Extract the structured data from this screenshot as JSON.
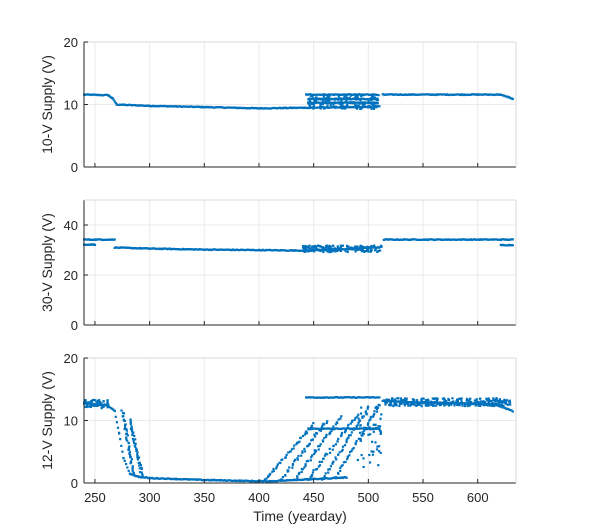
{
  "chart_data": [
    {
      "type": "scatter",
      "title": "",
      "xlabel": "",
      "ylabel": "10-V Supply (V)",
      "xlim": [
        240,
        635
      ],
      "ylim": [
        0,
        20
      ],
      "xticks": [
        250,
        300,
        350,
        400,
        450,
        500,
        550,
        600
      ],
      "yticks": [
        0,
        10,
        20
      ],
      "show_xticklabels": false,
      "grid": true,
      "color": "#0072BD",
      "segments": [
        {
          "x": [
            240,
            262,
            266,
            270,
            300,
            350,
            400,
            440,
            500,
            510
          ],
          "y": [
            11.6,
            11.5,
            11.0,
            10.0,
            9.8,
            9.6,
            9.4,
            9.5,
            9.6,
            9.7
          ]
        },
        {
          "x": [
            443,
            508
          ],
          "y": [
            11.6,
            11.6
          ]
        },
        {
          "x": [
            445,
            508
          ],
          "y": [
            10.9,
            10.9
          ]
        },
        {
          "x": [
            445,
            508
          ],
          "y": [
            10.3,
            10.3
          ]
        },
        {
          "x": [
            513,
            620,
            628,
            632
          ],
          "y": [
            11.6,
            11.6,
            11.2,
            10.9
          ]
        }
      ],
      "scatter_bands": [
        {
          "x0": 445,
          "x1": 510,
          "y0": 9.3,
          "y1": 11.6
        }
      ]
    },
    {
      "type": "scatter",
      "title": "",
      "xlabel": "",
      "ylabel": "30-V Supply (V)",
      "xlim": [
        240,
        635
      ],
      "ylim": [
        0,
        50
      ],
      "xticks": [
        250,
        300,
        350,
        400,
        450,
        500,
        550,
        600
      ],
      "yticks": [
        0,
        20,
        40
      ],
      "show_xticklabels": false,
      "grid": true,
      "color": "#0072BD",
      "segments": [
        {
          "x": [
            240,
            268
          ],
          "y": [
            34.2,
            34.2
          ]
        },
        {
          "x": [
            240,
            250
          ],
          "y": [
            32.2,
            32.2
          ]
        },
        {
          "x": [
            268,
            300,
            350,
            400,
            440,
            480,
            512
          ],
          "y": [
            31.0,
            30.6,
            30.2,
            30.0,
            29.8,
            30.4,
            31.2
          ]
        },
        {
          "x": [
            514,
            632
          ],
          "y": [
            34.2,
            34.2
          ]
        },
        {
          "x": [
            621,
            632
          ],
          "y": [
            32.0,
            32.0
          ]
        }
      ],
      "scatter_bands": [
        {
          "x0": 440,
          "x1": 512,
          "y0": 29.2,
          "y1": 31.8
        }
      ]
    },
    {
      "type": "scatter",
      "title": "",
      "xlabel": "Time (yearday)",
      "ylabel": "12-V Supply (V)",
      "xlim": [
        240,
        635
      ],
      "ylim": [
        0,
        20
      ],
      "xticks": [
        250,
        300,
        350,
        400,
        450,
        500,
        550,
        600
      ],
      "yticks": [
        0,
        10,
        20
      ],
      "show_xticklabels": true,
      "grid": true,
      "color": "#0072BD",
      "segments": [
        {
          "x": [
            240,
            255,
            262,
            268,
            272,
            276,
            282,
            290,
            300,
            350,
            400,
            410,
            420
          ],
          "y": [
            12.8,
            12.5,
            12.4,
            11.5,
            8.0,
            4.0,
            1.5,
            1.0,
            0.8,
            0.5,
            0.3,
            0.3,
            0.4
          ]
        },
        {
          "x": [
            443,
            510
          ],
          "y": [
            13.7,
            13.7
          ]
        },
        {
          "x": [
            445,
            510
          ],
          "y": [
            8.7,
            8.7
          ]
        },
        {
          "x": [
            420,
            445,
            480
          ],
          "y": [
            0.4,
            0.6,
            0.9
          ]
        },
        {
          "x": [
            513,
            540,
            580,
            615,
            625,
            632
          ],
          "y": [
            13.2,
            12.9,
            12.8,
            12.6,
            12.0,
            11.5
          ]
        }
      ],
      "ramps": [
        {
          "x0": 405,
          "x1": 450,
          "y0": 0.5,
          "y1": 9.5
        },
        {
          "x0": 420,
          "x1": 462,
          "y0": 0.5,
          "y1": 10.0
        },
        {
          "x0": 433,
          "x1": 475,
          "y0": 0.6,
          "y1": 10.5
        },
        {
          "x0": 445,
          "x1": 490,
          "y0": 0.6,
          "y1": 11.0
        },
        {
          "x0": 458,
          "x1": 500,
          "y0": 0.7,
          "y1": 12.0
        },
        {
          "x0": 470,
          "x1": 510,
          "y0": 0.8,
          "y1": 12.5
        },
        {
          "x0": 275,
          "x1": 285,
          "y0": 11.5,
          "y1": 1.5
        },
        {
          "x0": 282,
          "x1": 293,
          "y0": 10.0,
          "y1": 1.2
        }
      ],
      "scatter_bands": [
        {
          "x0": 490,
          "x1": 512,
          "y0": 2.5,
          "y1": 12.5
        },
        {
          "x0": 515,
          "x1": 630,
          "y0": 12.3,
          "y1": 13.6
        },
        {
          "x0": 240,
          "x1": 262,
          "y0": 12.0,
          "y1": 13.3
        }
      ]
    }
  ]
}
